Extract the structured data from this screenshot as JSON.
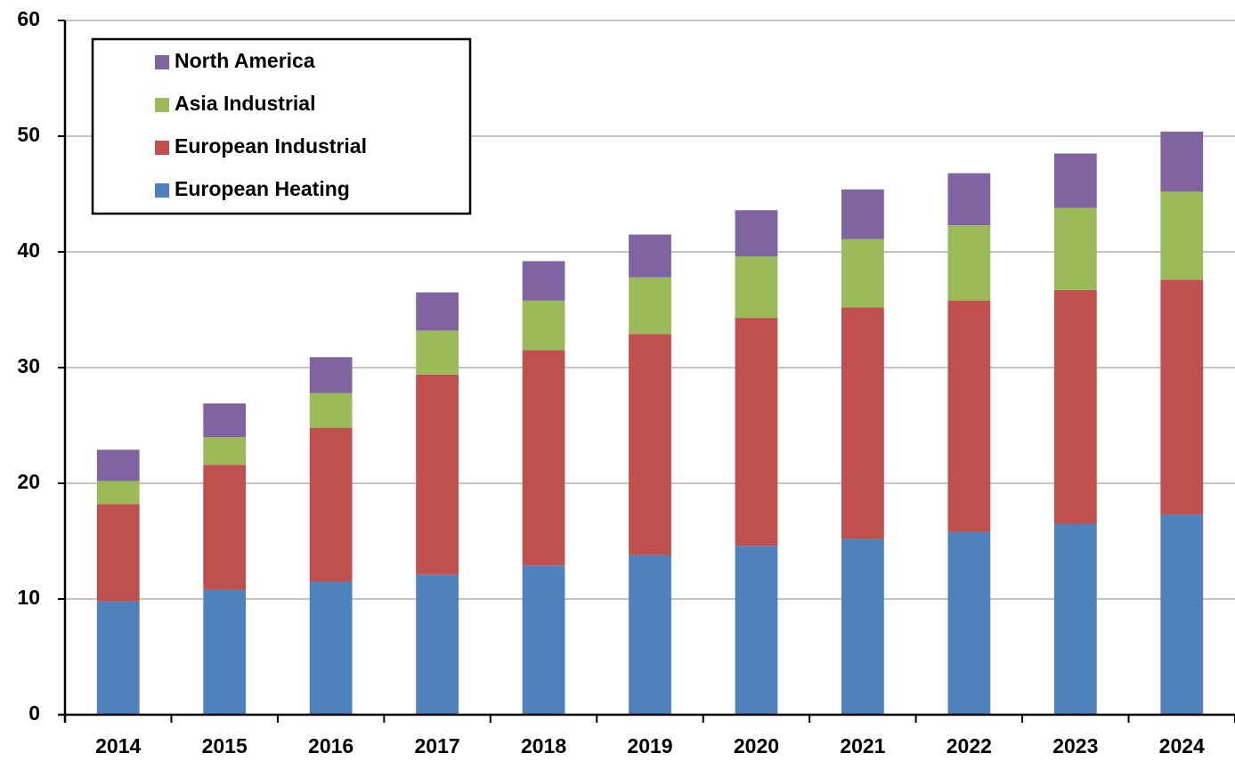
{
  "chart_data": {
    "type": "stacked_bar",
    "categories": [
      "2014",
      "2015",
      "2016",
      "2017",
      "2018",
      "2019",
      "2020",
      "2021",
      "2022",
      "2023",
      "2024"
    ],
    "series": [
      {
        "name": "European Heating",
        "color": "#4f81bd",
        "values": [
          9.8,
          10.8,
          11.5,
          12.1,
          12.9,
          13.8,
          14.6,
          15.2,
          15.8,
          16.5,
          17.3
        ]
      },
      {
        "name": "European Industrial",
        "color": "#c0504d",
        "values": [
          8.4,
          10.8,
          13.3,
          17.3,
          18.6,
          19.1,
          19.7,
          20.0,
          20.0,
          20.2,
          20.3
        ]
      },
      {
        "name": "Asia Industrial",
        "color": "#9bbb59",
        "values": [
          2.0,
          2.4,
          3.0,
          3.8,
          4.3,
          4.9,
          5.3,
          5.9,
          6.5,
          7.1,
          7.6
        ]
      },
      {
        "name": "North America",
        "color": "#8064a2",
        "values": [
          2.7,
          2.9,
          3.1,
          3.3,
          3.4,
          3.7,
          4.0,
          4.3,
          4.5,
          4.7,
          5.2
        ]
      }
    ],
    "ylim": [
      0,
      60
    ],
    "yticks": [
      0,
      10,
      20,
      30,
      40,
      50,
      60
    ],
    "grid": true,
    "legend": "top-left"
  }
}
